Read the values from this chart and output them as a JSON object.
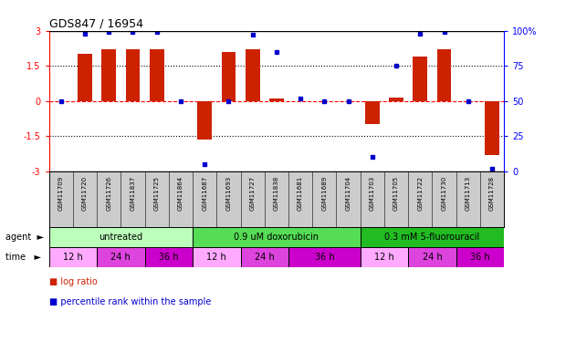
{
  "title": "GDS847 / 16954",
  "samples": [
    "GSM11709",
    "GSM11720",
    "GSM11726",
    "GSM11837",
    "GSM11725",
    "GSM11864",
    "GSM11687",
    "GSM11693",
    "GSM11727",
    "GSM11838",
    "GSM11681",
    "GSM11689",
    "GSM11704",
    "GSM11703",
    "GSM11705",
    "GSM11722",
    "GSM11730",
    "GSM11713",
    "GSM11728"
  ],
  "log_ratio": [
    0.0,
    2.0,
    2.2,
    2.2,
    2.2,
    0.0,
    -1.65,
    2.1,
    2.2,
    0.1,
    0.0,
    0.0,
    0.0,
    -1.0,
    0.15,
    1.9,
    2.2,
    0.0,
    -2.3
  ],
  "percentile": [
    50,
    98,
    99,
    99,
    99,
    50,
    5,
    50,
    97,
    85,
    52,
    50,
    50,
    10,
    75,
    98,
    99,
    50,
    2
  ],
  "agents": [
    {
      "label": "untreated",
      "start": 0,
      "end": 6,
      "color": "#bbffbb"
    },
    {
      "label": "0.9 uM doxorubicin",
      "start": 6,
      "end": 13,
      "color": "#55dd55"
    },
    {
      "label": "0.3 mM 5-fluorouracil",
      "start": 13,
      "end": 19,
      "color": "#22bb22"
    }
  ],
  "times": [
    {
      "label": "12 h",
      "start": 0,
      "end": 2,
      "color": "#ffaaff"
    },
    {
      "label": "24 h",
      "start": 2,
      "end": 4,
      "color": "#dd44dd"
    },
    {
      "label": "36 h",
      "start": 4,
      "end": 6,
      "color": "#cc00cc"
    },
    {
      "label": "12 h",
      "start": 6,
      "end": 8,
      "color": "#ffaaff"
    },
    {
      "label": "24 h",
      "start": 8,
      "end": 10,
      "color": "#dd44dd"
    },
    {
      "label": "36 h",
      "start": 10,
      "end": 13,
      "color": "#cc00cc"
    },
    {
      "label": "12 h",
      "start": 13,
      "end": 15,
      "color": "#ffaaff"
    },
    {
      "label": "24 h",
      "start": 15,
      "end": 17,
      "color": "#dd44dd"
    },
    {
      "label": "36 h",
      "start": 17,
      "end": 19,
      "color": "#cc00cc"
    }
  ],
  "ylim": [
    -3,
    3
  ],
  "yticks_left": [
    -3,
    -1.5,
    0,
    1.5,
    3
  ],
  "yticks_right": [
    0,
    25,
    50,
    75,
    100
  ],
  "bar_color": "#cc2200",
  "dot_color": "#0000cc",
  "bg_color": "#ffffff",
  "label_row_bg": "#cccccc"
}
